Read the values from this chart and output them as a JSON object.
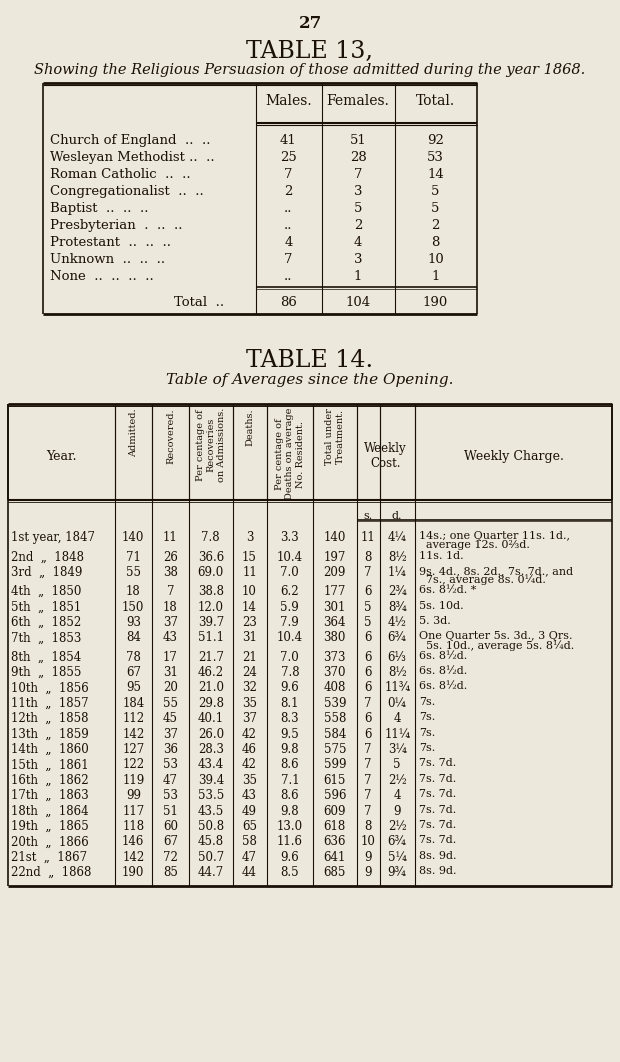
{
  "bg_color": "#ede8dc",
  "page_num": "27",
  "table13_title": "TABLE 13,",
  "table13_subtitle": "Showing the Religious Persuasion of those admitted during the year 1868.",
  "table13_rows": [
    [
      "Church of England  ..  ..",
      "41",
      "51",
      "92"
    ],
    [
      "Wesleyan Methodist ..  ..",
      "25",
      "28",
      "53"
    ],
    [
      "Roman Catholic  ..  ..",
      "7",
      "7",
      "14"
    ],
    [
      "Congregationalist  ..  ..",
      "2",
      "3",
      "5"
    ],
    [
      "Baptist  ..  ..  ..",
      "..",
      "5",
      "5"
    ],
    [
      "Presbyterian  .  ..  ..",
      "..",
      "2",
      "2"
    ],
    [
      "Protestant  ..  ..  ..",
      "4",
      "4",
      "8"
    ],
    [
      "Unknown  ..  ..  ..",
      "7",
      "3",
      "10"
    ],
    [
      "None  ..  ..  ..  ..",
      "..",
      "1",
      "1"
    ]
  ],
  "table13_total": [
    "Total  ..",
    "86",
    "104",
    "190"
  ],
  "table14_title": "TABLE 14.",
  "table14_subtitle": "Table of Averages since the Opening.",
  "table14_rows": [
    [
      "1st year, 1847",
      "140",
      "11",
      "7.8",
      "3",
      "3.3",
      "140",
      "11",
      "4¼",
      "14s.; one Quarter 11s. 1d.,\n  average 12s. 0⅔d."
    ],
    [
      "2nd  „  1848",
      "71",
      "26",
      "36.6",
      "15",
      "10.4",
      "197",
      "8",
      "8½",
      "11s. 1d."
    ],
    [
      "3rd  „  1849",
      "55",
      "38",
      "69.0",
      "11",
      "7.0",
      "209",
      "7",
      "1¼",
      "9s. 4d., 8s. 2d., 7s. 7d., and\n  7s., average 8s. 0¼d."
    ],
    [
      "4th  „  1850",
      "18",
      "7",
      "38.8",
      "10",
      "6.2",
      "177",
      "6",
      "2¾",
      "6s. 8½d. *"
    ],
    [
      "5th  „  1851",
      "150",
      "18",
      "12.0",
      "14",
      "5.9",
      "301",
      "5",
      "8¾",
      "5s. 10d."
    ],
    [
      "6th  „  1852",
      "93",
      "37",
      "39.7",
      "23",
      "7.9",
      "364",
      "5",
      "4½",
      "5. 3d."
    ],
    [
      "7th  „  1853",
      "84",
      "43",
      "51.1",
      "31",
      "10.4",
      "380",
      "6",
      "6¾",
      "One Quarter 5s. 3d., 3 Qrs.\n  5s. 10d., average 5s. 8¼d."
    ],
    [
      "8th  „  1854",
      "78",
      "17",
      "21.7",
      "21",
      "7.0",
      "373",
      "6",
      "6⅓",
      "6s. 8½d."
    ],
    [
      "9th  „  1855",
      "67",
      "31",
      "46.2",
      "24",
      "7.8",
      "370",
      "6",
      "8½",
      "6s. 8½d."
    ],
    [
      "10th  „  1856",
      "95",
      "20",
      "21.0",
      "32",
      "9.6",
      "408",
      "6",
      "11¾",
      "6s. 8½d."
    ],
    [
      "11th  „  1857",
      "184",
      "55",
      "29.8",
      "35",
      "8.1",
      "539",
      "7",
      "0¼",
      "7s."
    ],
    [
      "12th  „  1858",
      "112",
      "45",
      "40.1",
      "37",
      "8.3",
      "558",
      "6",
      "4",
      "7s."
    ],
    [
      "13th  „  1859",
      "142",
      "37",
      "26.0",
      "42",
      "9.5",
      "584",
      "6",
      "11¼",
      "7s."
    ],
    [
      "14th  „  1860",
      "127",
      "36",
      "28.3",
      "46",
      "9.8",
      "575",
      "7",
      "3¼",
      "7s."
    ],
    [
      "15th  „  1861",
      "122",
      "53",
      "43.4",
      "42",
      "8.6",
      "599",
      "7",
      "5",
      "7s. 7d."
    ],
    [
      "16th  „  1862",
      "119",
      "47",
      "39.4",
      "35",
      "7.1",
      "615",
      "7",
      "2½",
      "7s. 7d."
    ],
    [
      "17th  „  1863",
      "99",
      "53",
      "53.5",
      "43",
      "8.6",
      "596",
      "7",
      "4",
      "7s. 7d."
    ],
    [
      "18th  „  1864",
      "117",
      "51",
      "43.5",
      "49",
      "9.8",
      "609",
      "7",
      "9",
      "7s. 7d."
    ],
    [
      "19th  „  1865",
      "118",
      "60",
      "50.8",
      "65",
      "13.0",
      "618",
      "8",
      "2½",
      "7s. 7d."
    ],
    [
      "20th  „  1866",
      "146",
      "67",
      "45.8",
      "58",
      "11.6",
      "636",
      "10",
      "6¾",
      "7s. 7d."
    ],
    [
      "21st  „  1867",
      "142",
      "72",
      "50.7",
      "47",
      "9.6",
      "641",
      "9",
      "5¼",
      "8s. 9d."
    ],
    [
      "22nd  „  1868",
      "190",
      "85",
      "44.7",
      "44",
      "8.5",
      "685",
      "9",
      "9¾",
      "8s. 9d."
    ]
  ]
}
